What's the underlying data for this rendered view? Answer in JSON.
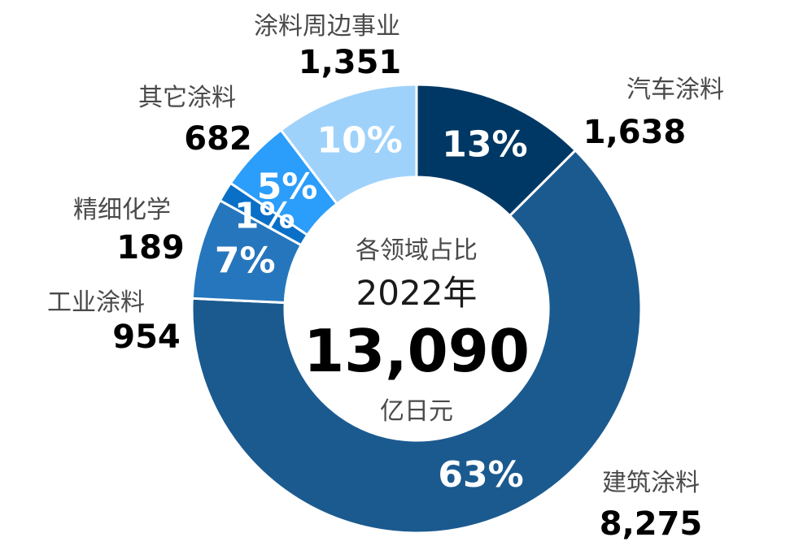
{
  "chart_data": {
    "type": "pie",
    "donut": true,
    "center": {
      "title": "各领域占比",
      "year": "2022年",
      "total": "13,090",
      "unit": "亿日元"
    },
    "slices": [
      {
        "name": "汽车涂料",
        "value": 1638,
        "value_label": "1,638",
        "percent_label": "13%",
        "color": "#003865"
      },
      {
        "name": "建筑涂料",
        "value": 8275,
        "value_label": "8,275",
        "percent_label": "63%",
        "color": "#1b5a8f"
      },
      {
        "name": "工业涂料",
        "value": 954,
        "value_label": "954",
        "percent_label": "7%",
        "color": "#2576bd"
      },
      {
        "name": "精细化学",
        "value": 189,
        "value_label": "189",
        "percent_label": "1%",
        "color": "#0a6fc7"
      },
      {
        "name": "其它涂料",
        "value": 682,
        "value_label": "682",
        "percent_label": "5%",
        "color": "#2b9dfa"
      },
      {
        "name": "涂料周边事业",
        "value": 1351,
        "value_label": "1,351",
        "percent_label": "10%",
        "color": "#9fd2fb"
      }
    ]
  }
}
